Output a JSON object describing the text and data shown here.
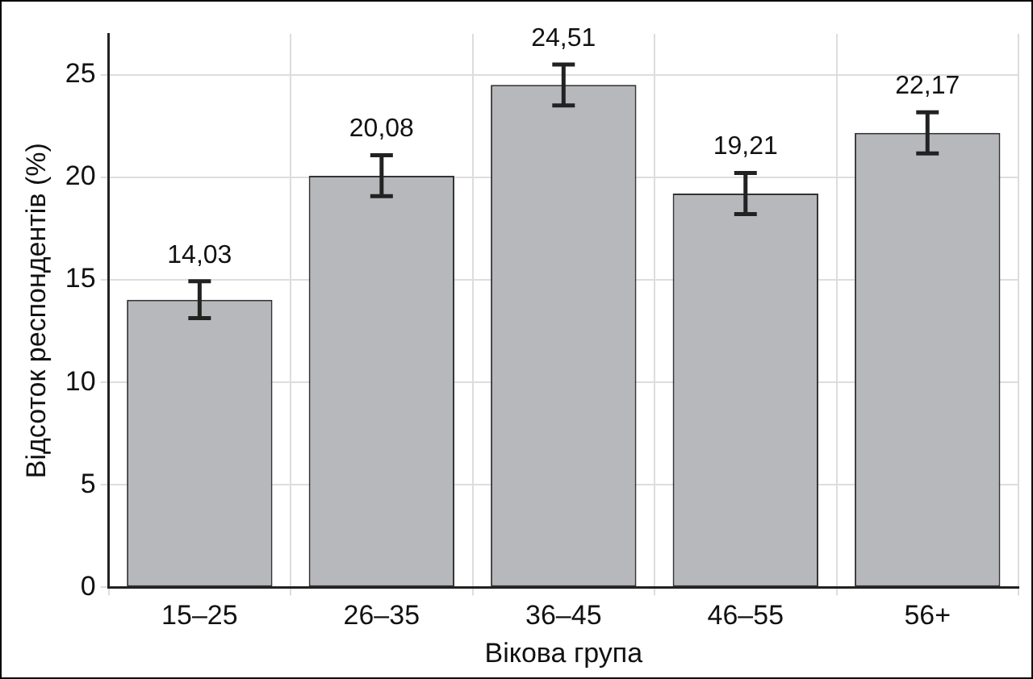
{
  "chart_data": {
    "type": "bar",
    "xlabel": "Вікова група",
    "ylabel": "Відсоток респондентів (%)",
    "categories": [
      "15–25",
      "26–35",
      "36–45",
      "46–55",
      "56+"
    ],
    "values": [
      14.03,
      20.08,
      24.51,
      19.21,
      22.17
    ],
    "errors": [
      0.9,
      1,
      1,
      1,
      1
    ],
    "value_labels": [
      "14,03",
      "20,08",
      "24,51",
      "19,21",
      "22,17"
    ],
    "color": "#b7b8bc",
    "ylim": [
      0,
      27
    ],
    "yticks": [
      0,
      5,
      10,
      15,
      20,
      25
    ],
    "grid": true,
    "legend": false
  }
}
